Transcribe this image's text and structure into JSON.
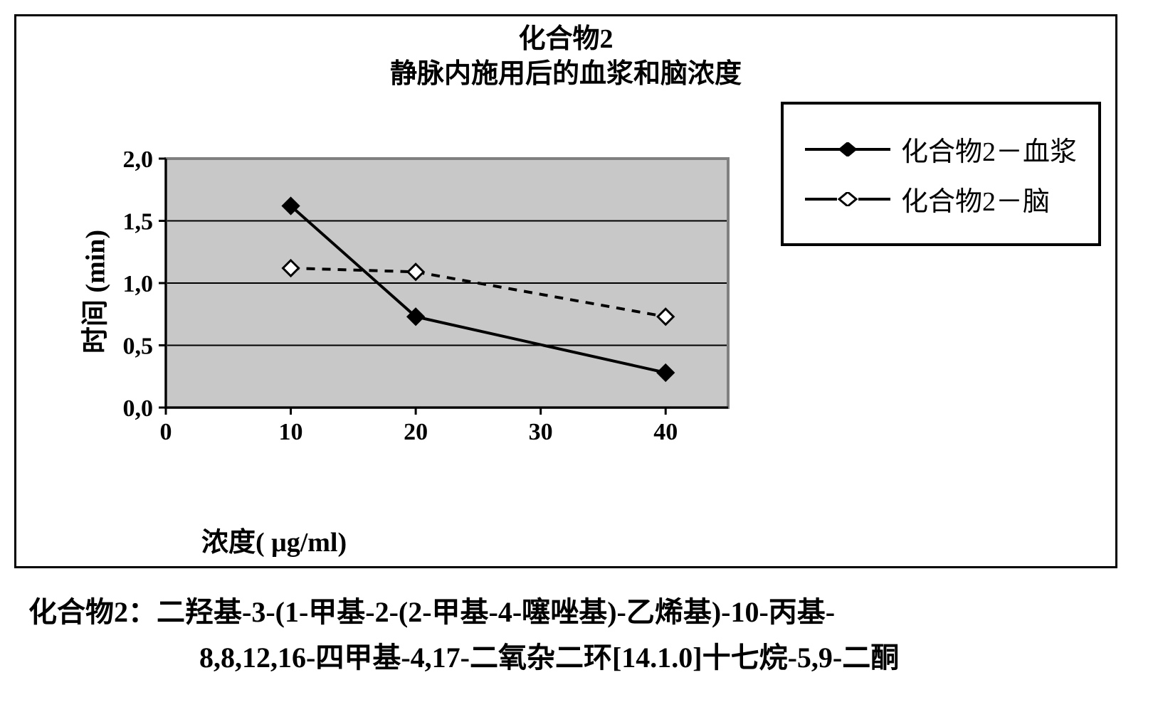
{
  "chart": {
    "type": "line",
    "title_line1": "化合物2",
    "title_line2": "静脉内施用后的血浆和脑浓度",
    "xlabel": "浓度(  μg/ml)",
    "ylabel": "时间 (min)",
    "xlim": [
      0,
      45
    ],
    "ylim": [
      0.0,
      2.0
    ],
    "xticks": [
      0,
      10,
      20,
      30,
      40
    ],
    "yticks": [
      "0,0",
      "0,5",
      "1,0",
      "1,5",
      "2,0"
    ],
    "ytick_values": [
      0.0,
      0.5,
      1.0,
      1.5,
      2.0
    ],
    "ytick_step": 0.5,
    "xtick_step": 10,
    "background_color": "#c8c8c8",
    "grid_color": "#000000",
    "axis_color": "#000000",
    "plot_border_color": "#808080",
    "tick_fontsize": 34,
    "label_fontsize": 38,
    "title_fontsize": 38,
    "legend_fontsize": 38,
    "line_width": 4,
    "marker_size": 11,
    "series": [
      {
        "name": "化合物2－血浆",
        "x": [
          10,
          20,
          40
        ],
        "y": [
          1.62,
          0.73,
          0.28
        ],
        "color": "#000000",
        "marker_style": "diamond",
        "marker_fill": "#000000",
        "marker_stroke": "#000000",
        "line_dash": "none"
      },
      {
        "name": "化合物2－脑",
        "x": [
          10,
          20,
          40
        ],
        "y": [
          1.12,
          1.09,
          0.73
        ],
        "color": "#000000",
        "marker_style": "diamond",
        "marker_fill": "#ffffff",
        "marker_stroke": "#000000",
        "line_dash": "12,10"
      }
    ]
  },
  "caption": {
    "prefix": "化合物2：",
    "line1": "二羟基-3-(1-甲基-2-(2-甲基-4-噻唑基)-乙烯基)-10-丙基-",
    "line2": "8,8,12,16-四甲基-4,17-二氧杂二环[14.1.0]十七烷-5,9-二酮"
  }
}
